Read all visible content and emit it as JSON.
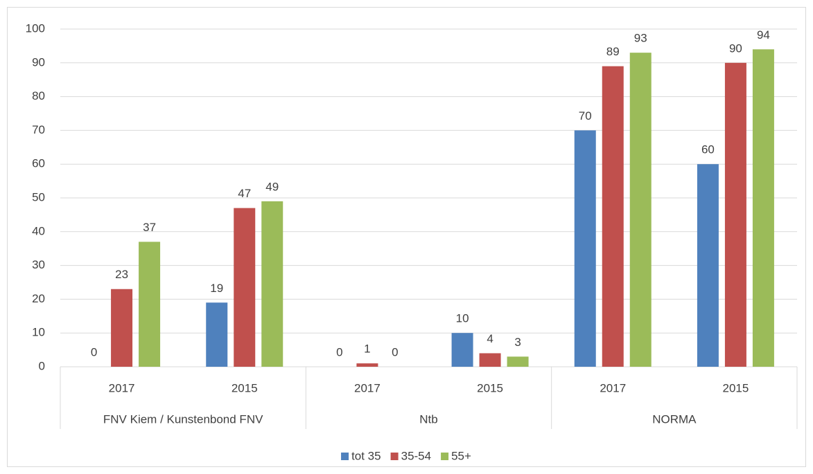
{
  "chart_data": {
    "type": "bar",
    "categories": [
      "2017",
      "2015",
      "2017",
      "2015",
      "2017",
      "2015"
    ],
    "groups": [
      "FNV Kiem / Kunstenbond FNV",
      "Ntb",
      "NORMA"
    ],
    "series": [
      {
        "name": "tot 35",
        "color": "#4f81bd",
        "values": [
          0,
          19,
          0,
          10,
          70,
          60
        ]
      },
      {
        "name": "35-54",
        "color": "#c0504d",
        "values": [
          23,
          47,
          1,
          4,
          89,
          90
        ]
      },
      {
        "name": "55+",
        "color": "#9bbb59",
        "values": [
          37,
          49,
          0,
          3,
          93,
          94
        ]
      }
    ],
    "ylim": [
      0,
      100
    ],
    "yticks": [
      0,
      10,
      20,
      30,
      40,
      50,
      60,
      70,
      80,
      90,
      100
    ],
    "grid": true,
    "legend": "bottom"
  }
}
